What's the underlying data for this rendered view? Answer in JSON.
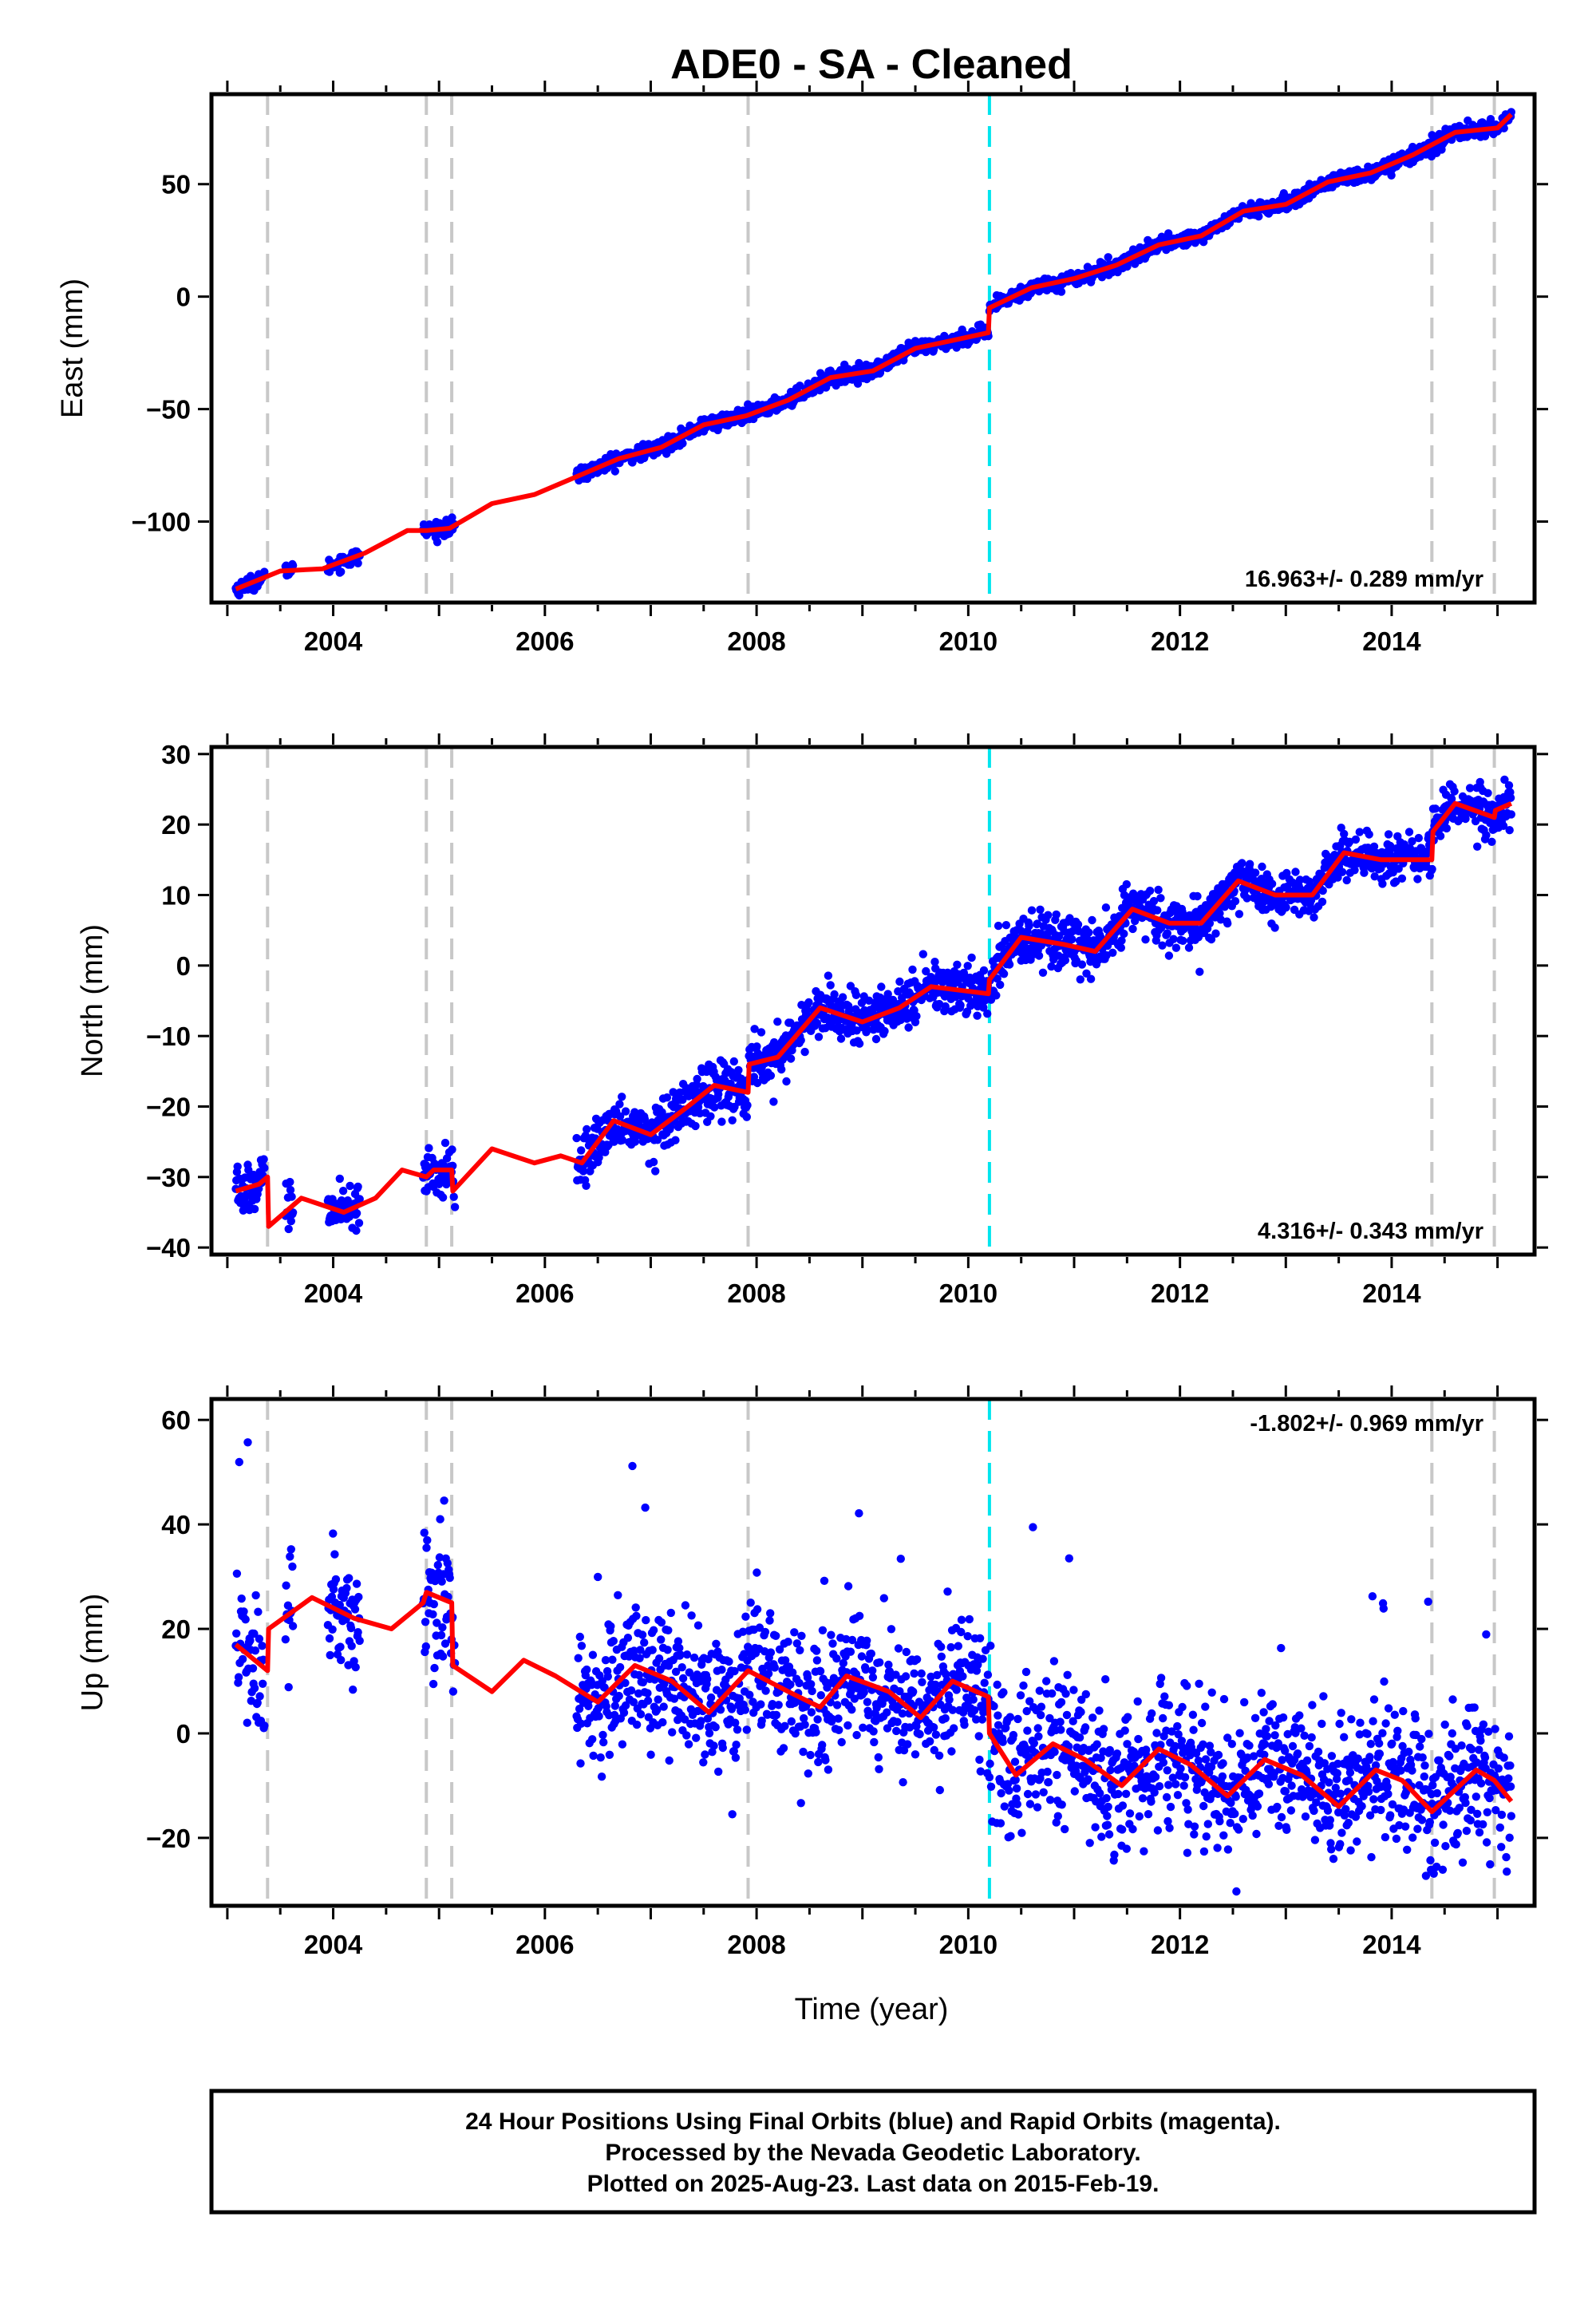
{
  "title": "ADE0  - SA - Cleaned",
  "xlabel": "Time (year)",
  "colors": {
    "points": "#0000ff",
    "model": "#ff0000",
    "event_line": "#c8c8c8",
    "offset_line": "#00e5ee"
  },
  "footer": {
    "line1": "24 Hour Positions Using Final Orbits (blue) and Rapid Orbits (magenta).",
    "line2": "Processed by the Nevada Geodetic Laboratory.",
    "line3": "Plotted on 2025-Aug-23. Last data on 2015-Feb-19."
  },
  "chart_data": [
    {
      "type": "scatter",
      "component": "east",
      "ylabel": "East (mm)",
      "rate_text": "16.963+/- 0.289 mm/yr",
      "xlim": [
        2002.85,
        2015.35
      ],
      "ylim": [
        -136,
        90
      ],
      "x_ticks": [
        2004,
        2006,
        2008,
        2010,
        2012,
        2014
      ],
      "y_ticks": [
        -100,
        -50,
        0,
        50
      ],
      "event_lines_x": [
        2003.38,
        2004.88,
        2005.12,
        2007.92,
        2014.38,
        2014.97
      ],
      "offset_lines_x": [
        2010.2
      ],
      "data_segments": [
        [
          2003.08,
          2003.35
        ],
        [
          2003.55,
          2003.62
        ],
        [
          2003.95,
          2004.25
        ],
        [
          2004.85,
          2005.15
        ],
        [
          2006.3,
          2010.19
        ],
        [
          2010.2,
          2015.13
        ]
      ],
      "model_knots": [
        [
          2003.08,
          -130
        ],
        [
          2003.5,
          -122
        ],
        [
          2003.9,
          -121
        ],
        [
          2004.3,
          -114
        ],
        [
          2004.7,
          -104
        ],
        [
          2004.88,
          -104
        ],
        [
          2005.1,
          -103
        ],
        [
          2005.5,
          -92
        ],
        [
          2005.9,
          -88
        ],
        [
          2006.3,
          -80
        ],
        [
          2006.7,
          -72
        ],
        [
          2007.1,
          -67
        ],
        [
          2007.5,
          -57
        ],
        [
          2007.9,
          -53
        ],
        [
          2008.3,
          -46
        ],
        [
          2008.7,
          -36
        ],
        [
          2009.1,
          -33
        ],
        [
          2009.5,
          -23
        ],
        [
          2009.9,
          -19
        ],
        [
          2010.19,
          -16
        ],
        [
          2010.2,
          -5
        ],
        [
          2010.6,
          4
        ],
        [
          2011.0,
          8
        ],
        [
          2011.4,
          14
        ],
        [
          2011.8,
          23
        ],
        [
          2012.2,
          27
        ],
        [
          2012.6,
          38
        ],
        [
          2013.0,
          41
        ],
        [
          2013.4,
          51
        ],
        [
          2013.8,
          55
        ],
        [
          2014.2,
          63
        ],
        [
          2014.6,
          73
        ],
        [
          2015.0,
          75
        ],
        [
          2015.13,
          81
        ]
      ],
      "noise_sd": 1.6
    },
    {
      "type": "scatter",
      "component": "north",
      "ylabel": "North (mm)",
      "rate_text": "4.316+/- 0.343 mm/yr",
      "xlim": [
        2002.85,
        2015.35
      ],
      "ylim": [
        -41,
        31
      ],
      "x_ticks": [
        2004,
        2006,
        2008,
        2010,
        2012,
        2014
      ],
      "y_ticks": [
        -40,
        -30,
        -20,
        -10,
        0,
        10,
        20,
        30
      ],
      "event_lines_x": [
        2003.38,
        2004.88,
        2005.12,
        2007.92,
        2014.38,
        2014.97
      ],
      "offset_lines_x": [
        2010.2
      ],
      "data_segments": [
        [
          2003.08,
          2003.35
        ],
        [
          2003.55,
          2003.62
        ],
        [
          2003.95,
          2004.25
        ],
        [
          2004.85,
          2005.15
        ],
        [
          2006.3,
          2010.19
        ],
        [
          2010.2,
          2015.13
        ]
      ],
      "model_knots": [
        [
          2003.08,
          -32
        ],
        [
          2003.3,
          -31
        ],
        [
          2003.38,
          -30
        ],
        [
          2003.39,
          -37
        ],
        [
          2003.7,
          -33
        ],
        [
          2004.1,
          -35
        ],
        [
          2004.4,
          -33
        ],
        [
          2004.65,
          -29
        ],
        [
          2004.88,
          -30
        ],
        [
          2004.95,
          -29
        ],
        [
          2005.12,
          -29
        ],
        [
          2005.13,
          -32
        ],
        [
          2005.5,
          -26
        ],
        [
          2005.9,
          -28
        ],
        [
          2006.15,
          -27
        ],
        [
          2006.35,
          -28
        ],
        [
          2006.65,
          -22
        ],
        [
          2007.0,
          -24
        ],
        [
          2007.35,
          -20
        ],
        [
          2007.6,
          -17
        ],
        [
          2007.92,
          -18
        ],
        [
          2007.93,
          -14
        ],
        [
          2008.2,
          -13
        ],
        [
          2008.6,
          -6
        ],
        [
          2009.0,
          -8
        ],
        [
          2009.35,
          -6
        ],
        [
          2009.65,
          -3
        ],
        [
          2010.19,
          -4
        ],
        [
          2010.2,
          -2
        ],
        [
          2010.5,
          4
        ],
        [
          2010.9,
          3
        ],
        [
          2011.2,
          2
        ],
        [
          2011.55,
          8
        ],
        [
          2011.9,
          6
        ],
        [
          2012.2,
          6
        ],
        [
          2012.55,
          12
        ],
        [
          2012.9,
          10
        ],
        [
          2013.25,
          10
        ],
        [
          2013.55,
          16
        ],
        [
          2013.9,
          15
        ],
        [
          2014.38,
          15
        ],
        [
          2014.39,
          19
        ],
        [
          2014.6,
          23
        ],
        [
          2014.97,
          21
        ],
        [
          2014.98,
          22
        ],
        [
          2015.13,
          23
        ]
      ],
      "noise_sd": 1.8
    },
    {
      "type": "scatter",
      "component": "up",
      "ylabel": "Up (mm)",
      "rate_text": "-1.802+/- 0.969 mm/yr",
      "xlim": [
        2002.85,
        2015.35
      ],
      "ylim": [
        -33,
        64
      ],
      "x_ticks": [
        2004,
        2006,
        2008,
        2010,
        2012,
        2014
      ],
      "y_ticks": [
        -20,
        0,
        20,
        40,
        60
      ],
      "event_lines_x": [
        2003.38,
        2004.88,
        2005.12,
        2007.92,
        2014.38,
        2014.97
      ],
      "offset_lines_x": [
        2010.2
      ],
      "data_segments": [
        [
          2003.08,
          2003.35
        ],
        [
          2003.55,
          2003.62
        ],
        [
          2003.95,
          2004.25
        ],
        [
          2004.85,
          2005.15
        ],
        [
          2006.3,
          2010.19
        ],
        [
          2010.2,
          2015.13
        ]
      ],
      "model_knots": [
        [
          2003.08,
          17
        ],
        [
          2003.38,
          12
        ],
        [
          2003.39,
          20
        ],
        [
          2003.8,
          26
        ],
        [
          2004.2,
          22
        ],
        [
          2004.55,
          20
        ],
        [
          2004.85,
          25
        ],
        [
          2004.88,
          27
        ],
        [
          2005.12,
          25
        ],
        [
          2005.13,
          13
        ],
        [
          2005.5,
          8
        ],
        [
          2005.8,
          14
        ],
        [
          2006.1,
          11
        ],
        [
          2006.5,
          6
        ],
        [
          2006.85,
          13
        ],
        [
          2007.2,
          10
        ],
        [
          2007.55,
          4
        ],
        [
          2007.92,
          12
        ],
        [
          2008.3,
          8
        ],
        [
          2008.6,
          5
        ],
        [
          2008.85,
          11
        ],
        [
          2009.25,
          8
        ],
        [
          2009.55,
          3
        ],
        [
          2009.85,
          10
        ],
        [
          2010.19,
          7
        ],
        [
          2010.2,
          0
        ],
        [
          2010.45,
          -8
        ],
        [
          2010.8,
          -2
        ],
        [
          2011.1,
          -5
        ],
        [
          2011.45,
          -10
        ],
        [
          2011.8,
          -3
        ],
        [
          2012.1,
          -6
        ],
        [
          2012.45,
          -12
        ],
        [
          2012.8,
          -5
        ],
        [
          2013.15,
          -8
        ],
        [
          2013.5,
          -14
        ],
        [
          2013.85,
          -7
        ],
        [
          2014.1,
          -9
        ],
        [
          2014.38,
          -15
        ],
        [
          2014.8,
          -7
        ],
        [
          2014.97,
          -9
        ],
        [
          2015.13,
          -13
        ]
      ],
      "noise_sd": 6.5
    }
  ]
}
